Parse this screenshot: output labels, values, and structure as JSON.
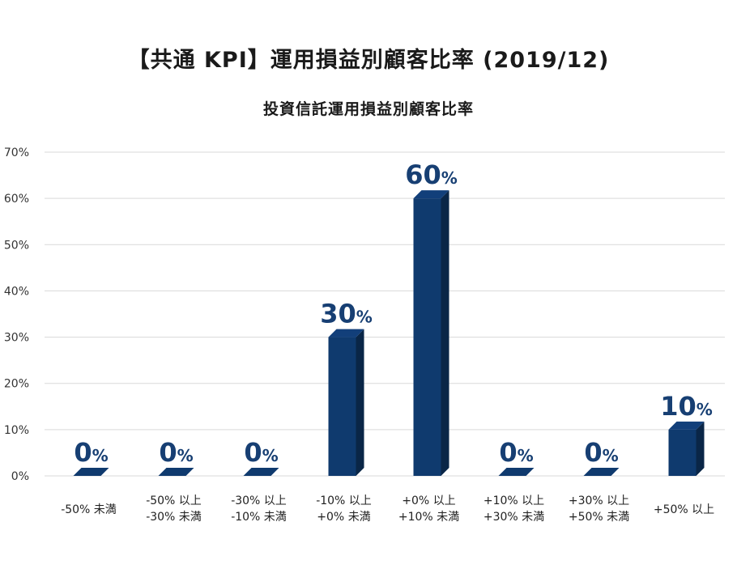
{
  "colors": {
    "bar_front": "#0f3a6e",
    "bar_side": "#0a2647",
    "bar_top": "#123f7a",
    "gridline": "#d9d9d9",
    "label": "#173f73"
  },
  "chart_data": {
    "type": "bar",
    "title": "【共通 KPI】運用損益別顧客比率 (2019/12)",
    "subtitle": "投資信託運用損益別顧客比率",
    "xlabel": "",
    "ylabel": "",
    "ylim": [
      0,
      70
    ],
    "yticks": [
      "0%",
      "10%",
      "20%",
      "30%",
      "40%",
      "50%",
      "60%",
      "70%"
    ],
    "ytick_values": [
      0,
      10,
      20,
      30,
      40,
      50,
      60,
      70
    ],
    "grid": true,
    "legend": "none",
    "categories": [
      [
        "-50% 未満"
      ],
      [
        "-50% 以上",
        "-30% 未満"
      ],
      [
        "-30% 以上",
        "-10% 未満"
      ],
      [
        "-10% 以上",
        "+0% 未満"
      ],
      [
        "+0% 以上",
        "+10% 未満"
      ],
      [
        "+10% 以上",
        "+30% 未満"
      ],
      [
        "+30% 以上",
        "+50% 未満"
      ],
      [
        "+50% 以上"
      ]
    ],
    "values": [
      0,
      0,
      0,
      30,
      60,
      0,
      0,
      10
    ],
    "data_labels": [
      "0",
      "0",
      "0",
      "30",
      "60",
      "0",
      "0",
      "10"
    ],
    "data_label_suffix": "%"
  }
}
